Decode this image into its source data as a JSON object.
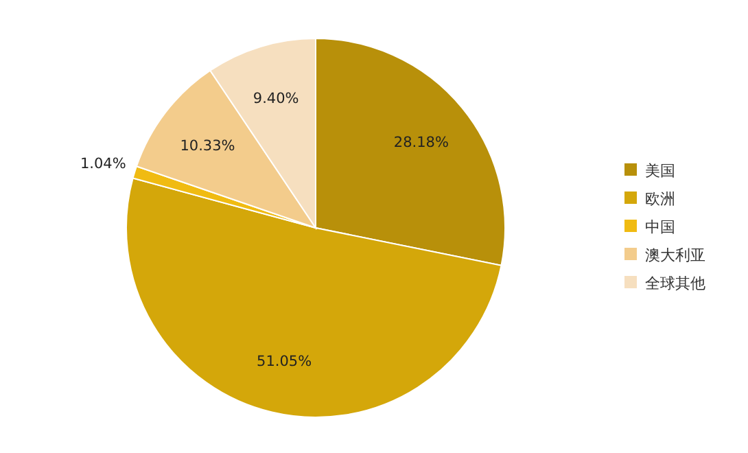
{
  "chart_data": {
    "type": "pie",
    "categories": [
      "美国",
      "欧洲",
      "中国",
      "澳大利亚",
      "全球其他"
    ],
    "values": [
      28.18,
      51.05,
      1.04,
      10.33,
      9.4
    ],
    "colors": [
      "#b8900a",
      "#d4a70a",
      "#f0bb12",
      "#f3cc8c",
      "#f6dfbf"
    ],
    "value_labels": [
      "28.18%",
      "51.05%",
      "1.04%",
      "10.33%",
      "9.40%"
    ],
    "legend": "right"
  }
}
